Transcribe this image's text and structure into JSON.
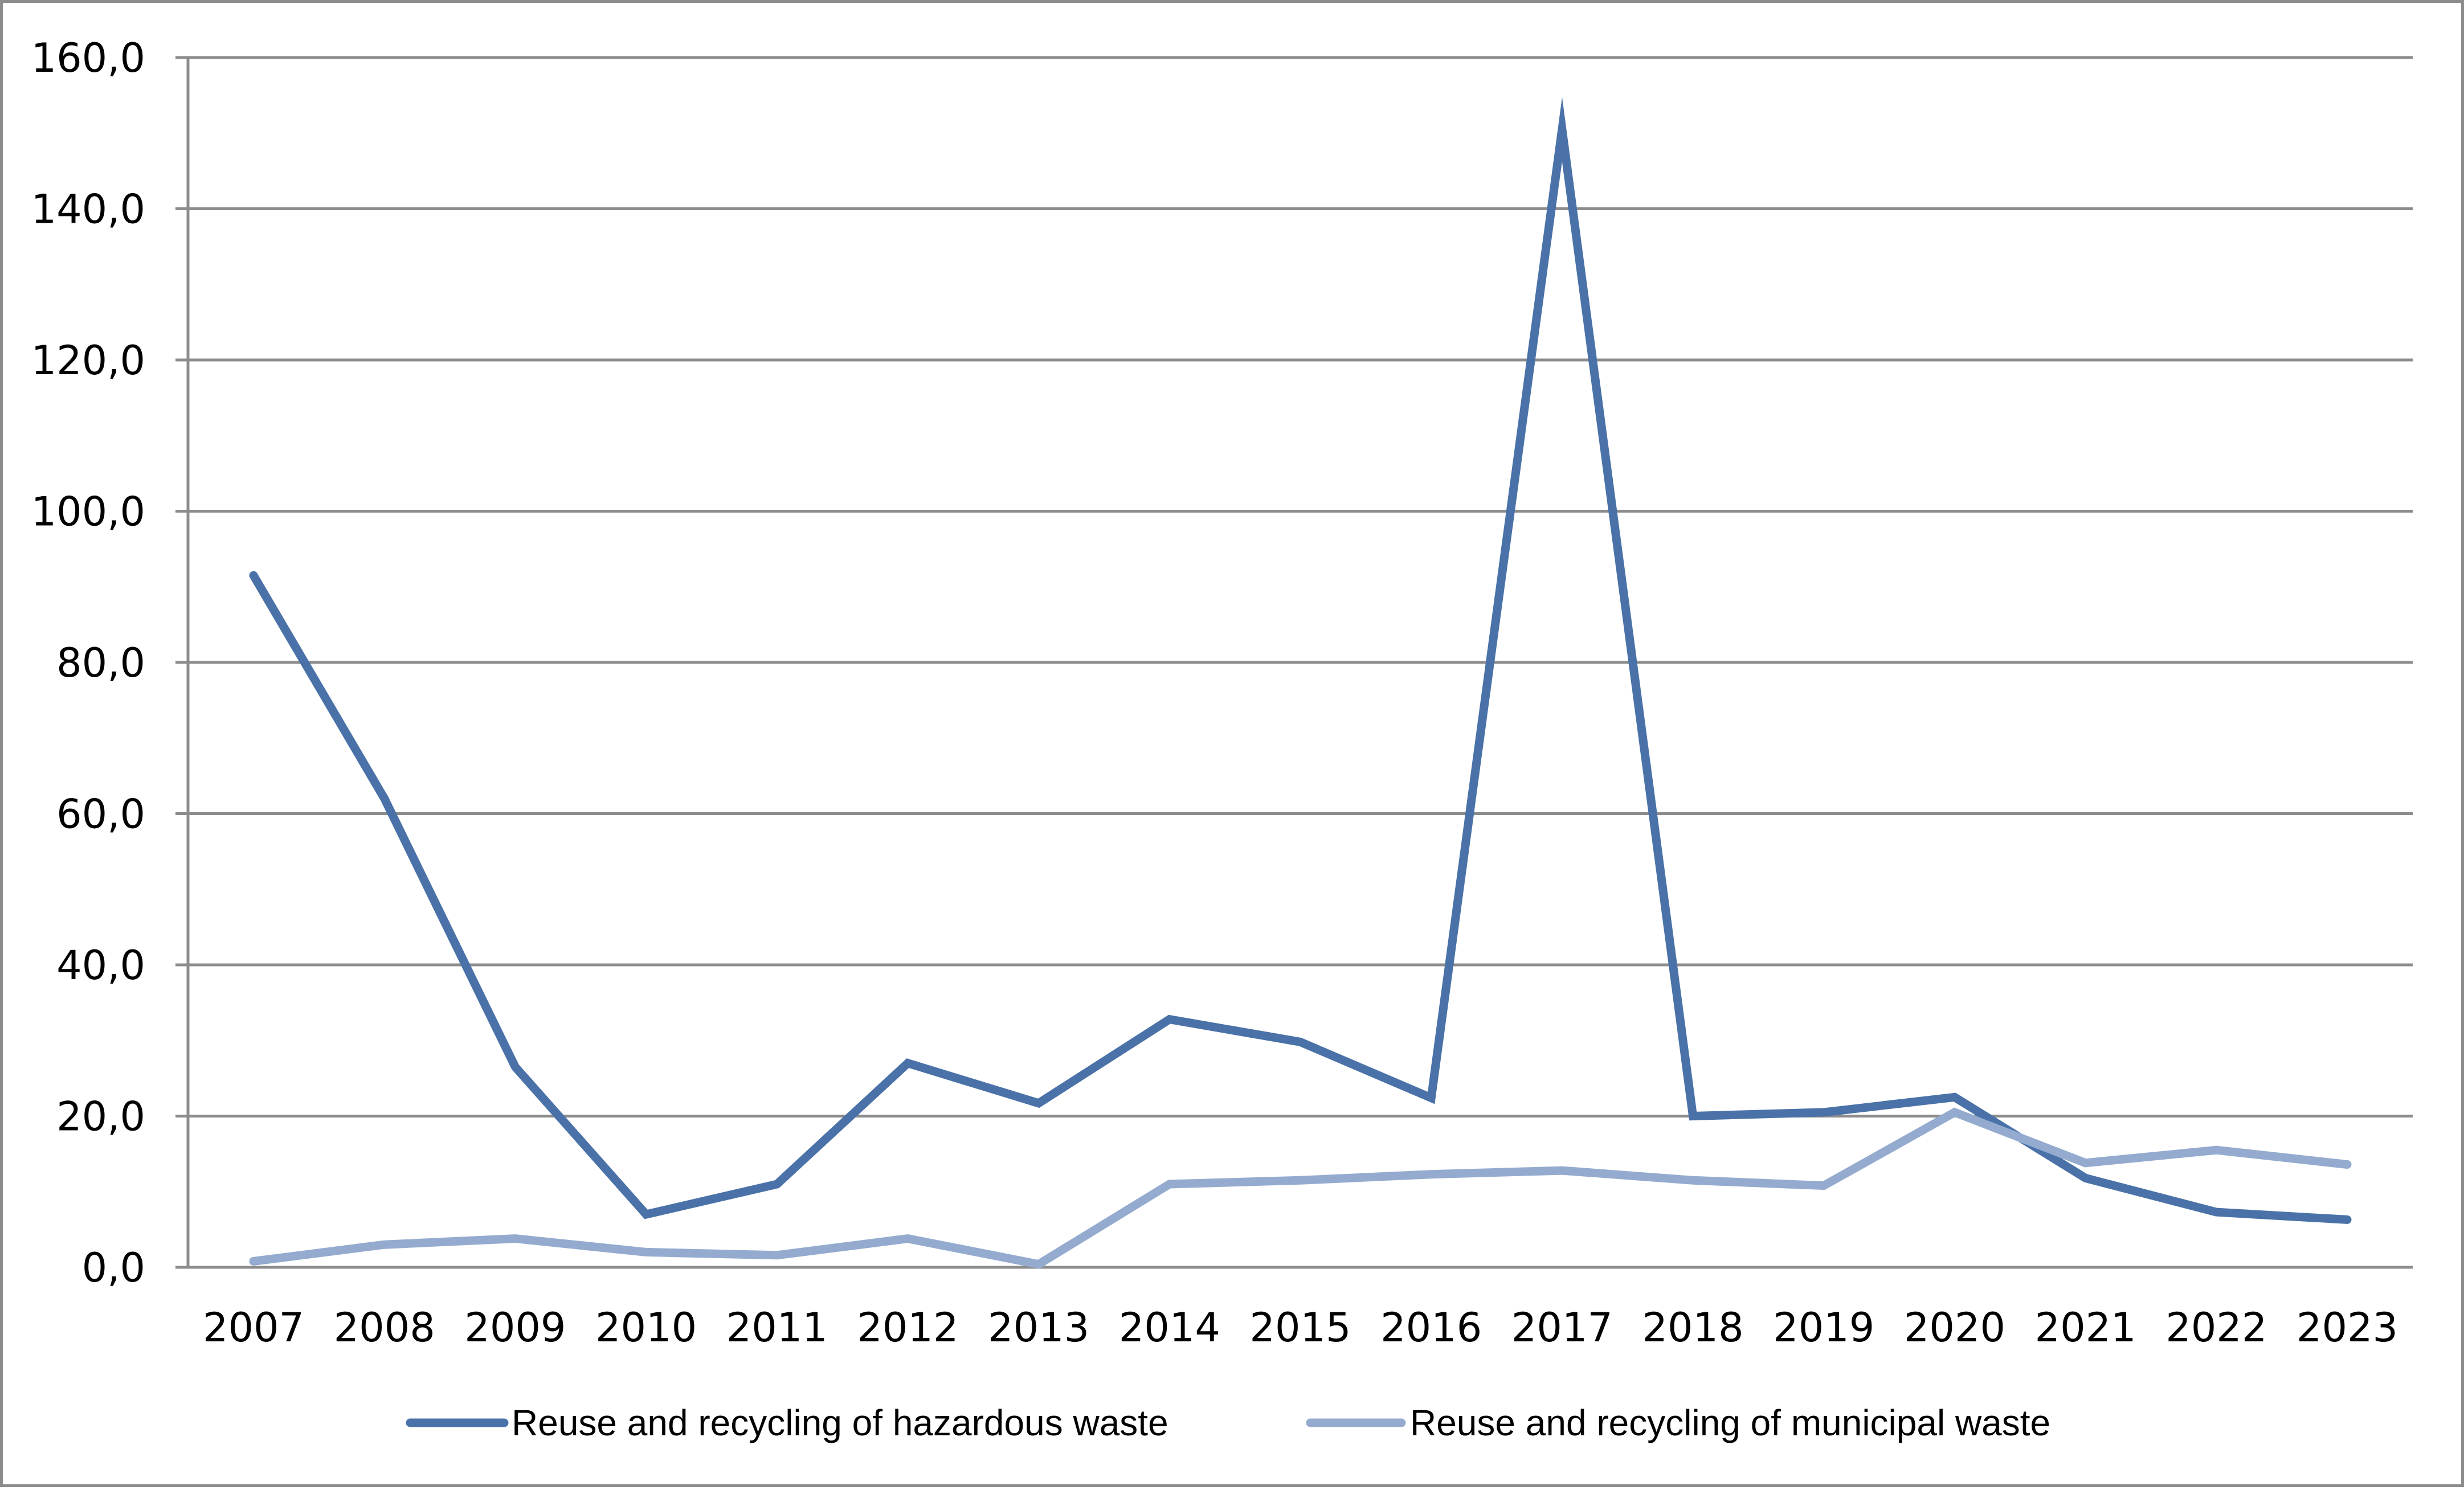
{
  "chart_data": {
    "type": "line",
    "title": "",
    "xlabel": "",
    "ylabel": "",
    "x": [
      "2007",
      "2008",
      "2009",
      "2010",
      "2011",
      "2012",
      "2013",
      "2014",
      "2015",
      "2016",
      "2017",
      "2018",
      "2019",
      "2020",
      "2021",
      "2022",
      "2023"
    ],
    "ylim": [
      0,
      160
    ],
    "y_ticks": [
      0,
      20,
      40,
      60,
      80,
      100,
      120,
      140,
      160
    ],
    "y_tick_labels": [
      "0,0",
      "20,0",
      "40,0",
      "60,0",
      "80,0",
      "100,0",
      "120,0",
      "140,0",
      "160,0"
    ],
    "grid": "horizontal",
    "legend_position": "bottom",
    "series": [
      {
        "name": "Reuse and recycling of hazardous waste",
        "color": "#4a72a8",
        "values": [
          91.5,
          62.0,
          26.5,
          7.0,
          11.0,
          27.0,
          21.7,
          32.8,
          29.8,
          22.4,
          150.5,
          20.0,
          20.5,
          22.5,
          11.8,
          7.3,
          6.3
        ]
      },
      {
        "name": "Reuse and recycling of municipal waste",
        "color": "#94abcf",
        "values": [
          0.8,
          3.0,
          3.8,
          2.0,
          1.6,
          3.8,
          0.4,
          11.0,
          11.5,
          12.3,
          12.8,
          11.5,
          10.8,
          20.5,
          13.8,
          15.5,
          13.6
        ]
      }
    ]
  }
}
